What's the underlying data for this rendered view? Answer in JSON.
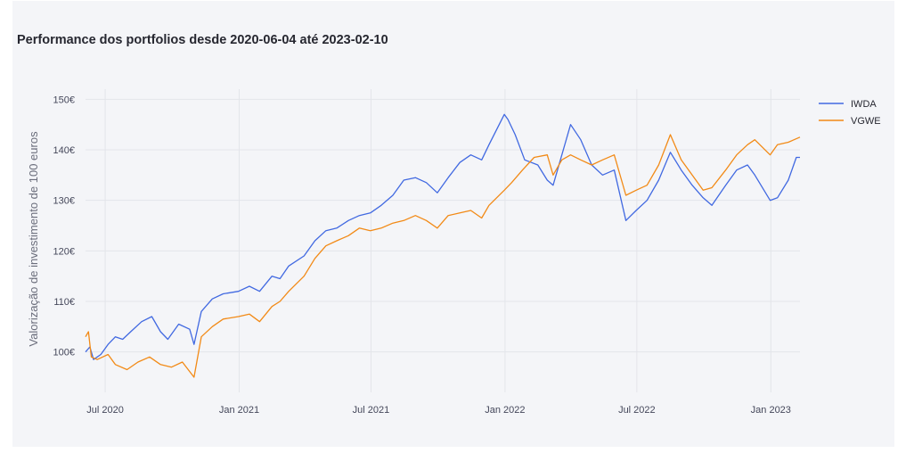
{
  "chart_data": {
    "type": "line",
    "title": "Performance dos portfolios desde 2020-06-04 até 2023-02-10",
    "xlabel": "",
    "ylabel": "Valorização de investimento de 100 euros",
    "ylim": [
      92,
      152
    ],
    "y_ticks": [
      100,
      110,
      120,
      130,
      140,
      150
    ],
    "y_tick_suffix": "€",
    "xlim": [
      "2020-06-04",
      "2023-02-10"
    ],
    "x_ticks": [
      {
        "date": "2020-07-01",
        "label": "Jul 2020"
      },
      {
        "date": "2021-01-01",
        "label": "Jan 2021"
      },
      {
        "date": "2021-07-01",
        "label": "Jul 2021"
      },
      {
        "date": "2022-01-01",
        "label": "Jan 2022"
      },
      {
        "date": "2022-07-01",
        "label": "Jul 2022"
      },
      {
        "date": "2023-01-01",
        "label": "Jan 2023"
      }
    ],
    "grid": true,
    "legend_position": "top-right",
    "series": [
      {
        "name": "IWDA",
        "color": "#4169e1",
        "points": [
          [
            "2020-06-04",
            100
          ],
          [
            "2020-06-10",
            101
          ],
          [
            "2020-06-15",
            98.5
          ],
          [
            "2020-06-25",
            99.5
          ],
          [
            "2020-07-05",
            101.5
          ],
          [
            "2020-07-15",
            103
          ],
          [
            "2020-07-25",
            102.5
          ],
          [
            "2020-08-05",
            104
          ],
          [
            "2020-08-20",
            106
          ],
          [
            "2020-09-03",
            107
          ],
          [
            "2020-09-15",
            104
          ],
          [
            "2020-09-25",
            102.5
          ],
          [
            "2020-10-10",
            105.5
          ],
          [
            "2020-10-25",
            104.5
          ],
          [
            "2020-10-31",
            101.5
          ],
          [
            "2020-11-10",
            108
          ],
          [
            "2020-11-25",
            110.5
          ],
          [
            "2020-12-10",
            111.5
          ],
          [
            "2020-12-31",
            112
          ],
          [
            "2021-01-15",
            113
          ],
          [
            "2021-01-29",
            112
          ],
          [
            "2021-02-15",
            115
          ],
          [
            "2021-02-26",
            114.5
          ],
          [
            "2021-03-10",
            117
          ],
          [
            "2021-03-31",
            119
          ],
          [
            "2021-04-15",
            122
          ],
          [
            "2021-04-30",
            124
          ],
          [
            "2021-05-15",
            124.5
          ],
          [
            "2021-05-31",
            126
          ],
          [
            "2021-06-15",
            127
          ],
          [
            "2021-06-30",
            127.5
          ],
          [
            "2021-07-15",
            129
          ],
          [
            "2021-07-31",
            131
          ],
          [
            "2021-08-15",
            134
          ],
          [
            "2021-08-31",
            134.5
          ],
          [
            "2021-09-15",
            133.5
          ],
          [
            "2021-09-30",
            131.5
          ],
          [
            "2021-10-15",
            134.5
          ],
          [
            "2021-10-31",
            137.5
          ],
          [
            "2021-11-15",
            139
          ],
          [
            "2021-11-30",
            138
          ],
          [
            "2021-12-10",
            141
          ],
          [
            "2021-12-31",
            147
          ],
          [
            "2022-01-05",
            146
          ],
          [
            "2022-01-15",
            143
          ],
          [
            "2022-01-28",
            138
          ],
          [
            "2022-02-15",
            137
          ],
          [
            "2022-02-28",
            134
          ],
          [
            "2022-03-08",
            133
          ],
          [
            "2022-03-20",
            139
          ],
          [
            "2022-04-01",
            145
          ],
          [
            "2022-04-15",
            142
          ],
          [
            "2022-04-30",
            137
          ],
          [
            "2022-05-15",
            135
          ],
          [
            "2022-05-31",
            136
          ],
          [
            "2022-06-16",
            126
          ],
          [
            "2022-06-30",
            128
          ],
          [
            "2022-07-15",
            130
          ],
          [
            "2022-07-31",
            134
          ],
          [
            "2022-08-16",
            139.5
          ],
          [
            "2022-08-31",
            136
          ],
          [
            "2022-09-15",
            133
          ],
          [
            "2022-09-30",
            130.5
          ],
          [
            "2022-10-12",
            129
          ],
          [
            "2022-10-31",
            133
          ],
          [
            "2022-11-15",
            136
          ],
          [
            "2022-11-30",
            137
          ],
          [
            "2022-12-10",
            135
          ],
          [
            "2022-12-31",
            130
          ],
          [
            "2023-01-10",
            130.5
          ],
          [
            "2023-01-25",
            134
          ],
          [
            "2023-02-05",
            138.5
          ],
          [
            "2023-02-10",
            138.5
          ]
        ]
      },
      {
        "name": "VGWE",
        "color": "#f28a16",
        "points": [
          [
            "2020-06-04",
            103
          ],
          [
            "2020-06-08",
            104
          ],
          [
            "2020-06-12",
            99
          ],
          [
            "2020-06-20",
            98.5
          ],
          [
            "2020-07-05",
            99.5
          ],
          [
            "2020-07-15",
            97.5
          ],
          [
            "2020-07-31",
            96.5
          ],
          [
            "2020-08-15",
            98
          ],
          [
            "2020-08-31",
            99
          ],
          [
            "2020-09-15",
            97.5
          ],
          [
            "2020-09-30",
            97
          ],
          [
            "2020-10-15",
            98
          ],
          [
            "2020-10-31",
            95
          ],
          [
            "2020-11-10",
            103
          ],
          [
            "2020-11-25",
            105
          ],
          [
            "2020-12-10",
            106.5
          ],
          [
            "2020-12-31",
            107
          ],
          [
            "2021-01-15",
            107.5
          ],
          [
            "2021-01-29",
            106
          ],
          [
            "2021-02-15",
            109
          ],
          [
            "2021-02-26",
            110
          ],
          [
            "2021-03-10",
            112
          ],
          [
            "2021-03-31",
            115
          ],
          [
            "2021-04-15",
            118.5
          ],
          [
            "2021-04-30",
            121
          ],
          [
            "2021-05-15",
            122
          ],
          [
            "2021-05-31",
            123
          ],
          [
            "2021-06-15",
            124.5
          ],
          [
            "2021-06-30",
            124
          ],
          [
            "2021-07-15",
            124.5
          ],
          [
            "2021-07-31",
            125.5
          ],
          [
            "2021-08-15",
            126
          ],
          [
            "2021-08-31",
            127
          ],
          [
            "2021-09-15",
            126
          ],
          [
            "2021-09-30",
            124.5
          ],
          [
            "2021-10-15",
            127
          ],
          [
            "2021-10-31",
            127.5
          ],
          [
            "2021-11-15",
            128
          ],
          [
            "2021-11-30",
            126.5
          ],
          [
            "2021-12-10",
            129
          ],
          [
            "2021-12-31",
            132
          ],
          [
            "2022-01-10",
            133.5
          ],
          [
            "2022-01-25",
            136
          ],
          [
            "2022-02-10",
            138.5
          ],
          [
            "2022-02-28",
            139
          ],
          [
            "2022-03-08",
            135
          ],
          [
            "2022-03-20",
            138
          ],
          [
            "2022-04-01",
            139
          ],
          [
            "2022-04-15",
            138
          ],
          [
            "2022-04-30",
            137
          ],
          [
            "2022-05-15",
            138
          ],
          [
            "2022-05-31",
            139
          ],
          [
            "2022-06-16",
            131
          ],
          [
            "2022-06-30",
            132
          ],
          [
            "2022-07-15",
            133
          ],
          [
            "2022-07-31",
            137
          ],
          [
            "2022-08-16",
            143
          ],
          [
            "2022-08-31",
            138
          ],
          [
            "2022-09-15",
            135
          ],
          [
            "2022-09-30",
            132
          ],
          [
            "2022-10-12",
            132.5
          ],
          [
            "2022-10-31",
            136
          ],
          [
            "2022-11-15",
            139
          ],
          [
            "2022-11-30",
            141
          ],
          [
            "2022-12-10",
            142
          ],
          [
            "2022-12-31",
            139
          ],
          [
            "2023-01-10",
            141
          ],
          [
            "2023-01-25",
            141.5
          ],
          [
            "2023-02-10",
            142.5
          ]
        ]
      }
    ]
  }
}
